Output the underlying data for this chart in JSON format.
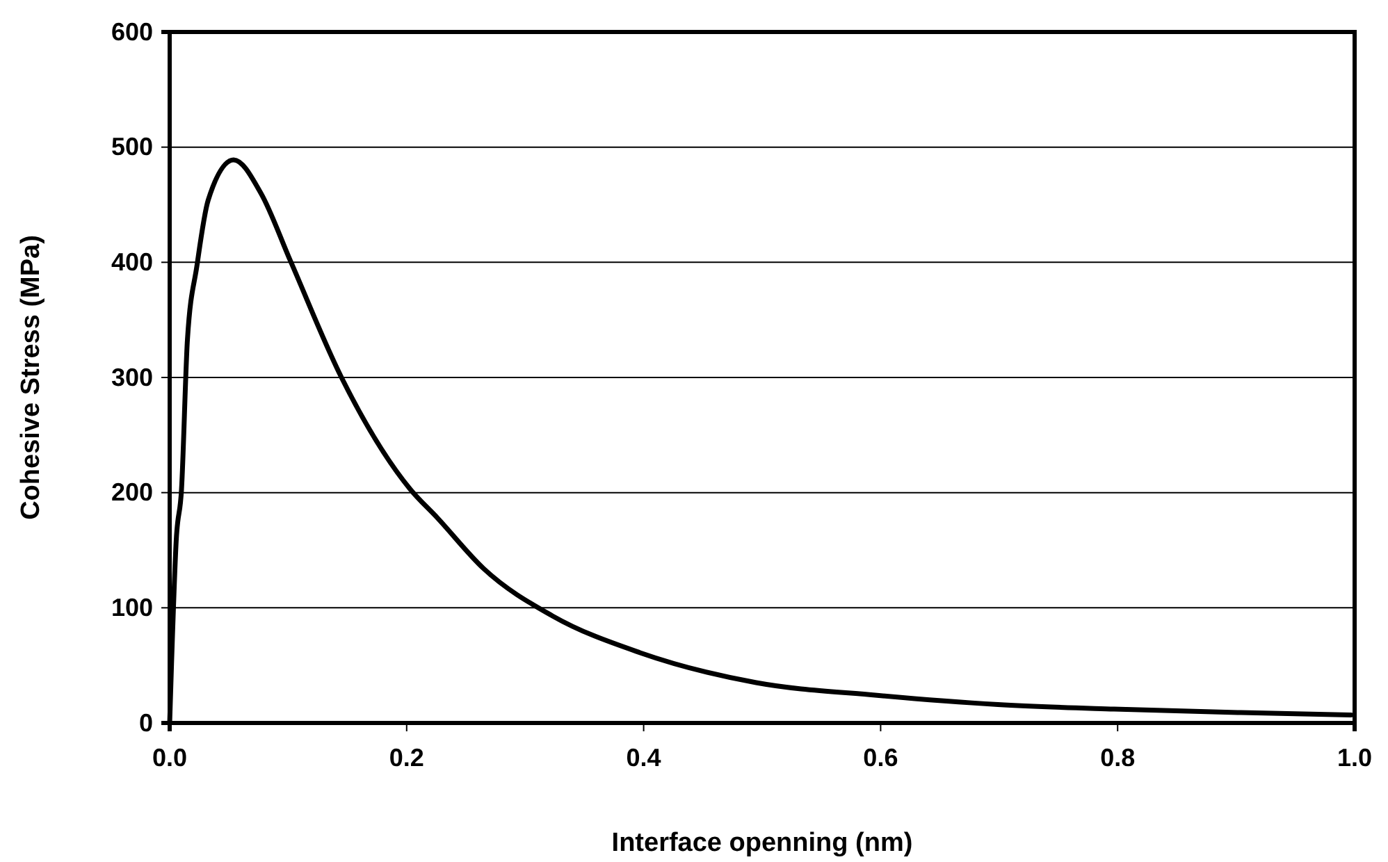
{
  "chart_data": {
    "type": "line",
    "xlabel": "Interface openning (nm)",
    "ylabel": "Cohesive Stress (MPa)",
    "xlim": [
      0,
      1
    ],
    "xticks": [
      {
        "value": 0,
        "label": "0.0"
      },
      {
        "value": 0.2,
        "label": "0.2"
      },
      {
        "value": 0.4,
        "label": "0.4"
      },
      {
        "value": 0.6,
        "label": "0.6"
      },
      {
        "value": 0.8,
        "label": "0.8"
      },
      {
        "value": 1,
        "label": "1.0"
      }
    ],
    "ylim": [
      0,
      600
    ],
    "yticks": [
      0,
      100,
      200,
      300,
      400,
      500,
      600
    ],
    "grid": "y",
    "marker": "none",
    "line_style": "solid",
    "series": [
      {
        "color": "#000000",
        "x": [
          0,
          0.0015,
          0.0055,
          0.01,
          0.015,
          0.023,
          0.0325,
          0.054,
          0.077,
          0.102,
          0.145,
          0.203,
          0.226,
          0.265,
          0.323,
          0.397,
          0.495,
          0.597,
          0.699,
          0.797,
          0.904,
          0.997
        ],
        "values": [
          0,
          49,
          158,
          203,
          333,
          397,
          454,
          489,
          460,
          401,
          300,
          203,
          178,
          134,
          93,
          61,
          35,
          24,
          16,
          12,
          9,
          7
        ]
      }
    ]
  }
}
